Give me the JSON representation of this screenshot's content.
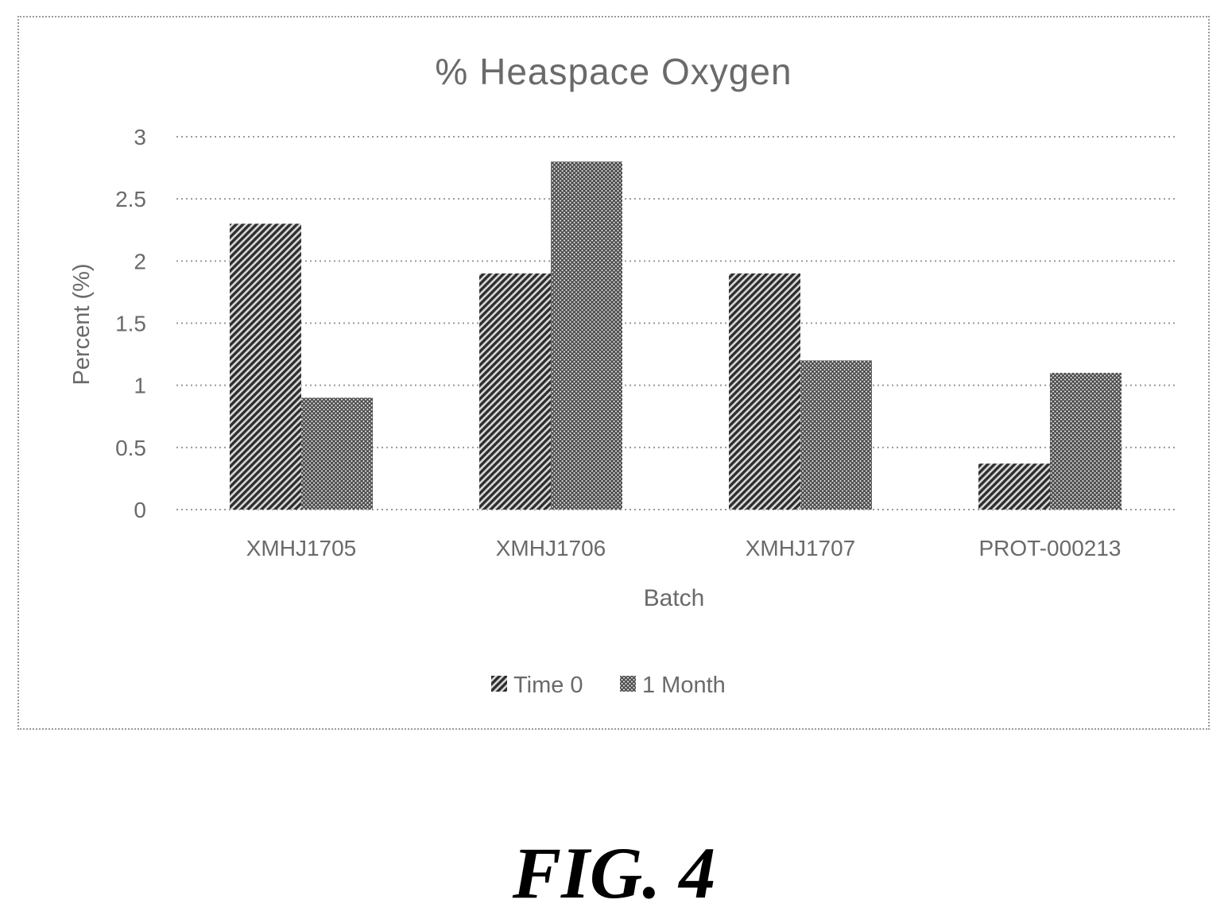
{
  "caption": "FIG. 4",
  "chart_data": {
    "type": "bar",
    "title": "%  Heaspace Oxygen",
    "xlabel": "Batch",
    "ylabel": "Percent (%)",
    "ylim": [
      0,
      3
    ],
    "yticks": [
      0,
      0.5,
      1,
      1.5,
      2,
      2.5,
      3
    ],
    "ytick_labels": [
      "0",
      "0.5",
      "1",
      "1.5",
      "2",
      "2.5",
      "3"
    ],
    "grid": true,
    "legend_position": "bottom",
    "categories": [
      "XMHJ1705",
      "XMHJ1706",
      "XMHJ1707",
      "PROT-000213"
    ],
    "series": [
      {
        "name": "Time 0",
        "pattern": "dense-diagonal",
        "color": "#3a3a3a",
        "values": [
          2.3,
          1.9,
          1.9,
          0.37
        ]
      },
      {
        "name": "1 Month",
        "pattern": "crosshatch",
        "color": "#6e6e6e",
        "values": [
          0.9,
          2.8,
          1.2,
          1.1
        ]
      }
    ]
  }
}
